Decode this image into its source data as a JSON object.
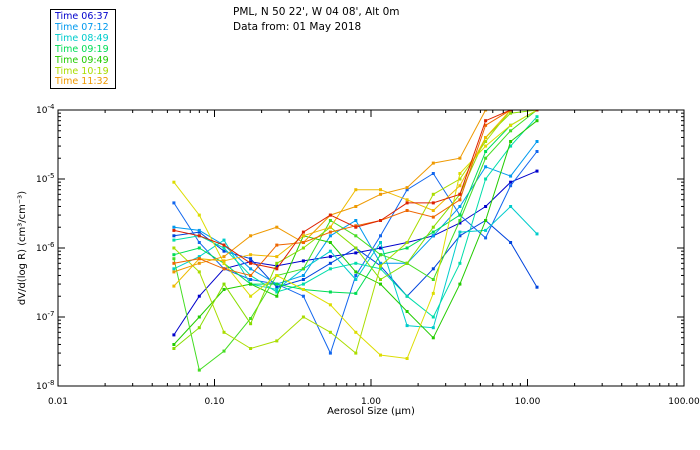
{
  "header": {
    "location": "PML, N 50 22', W 04 08', Alt 0m",
    "data_from": "Data from: 01 May 2018"
  },
  "legend": {
    "items": [
      {
        "label": "Time 06:37",
        "color": "#0000cc"
      },
      {
        "label": "Time 07:12",
        "color": "#0099ee"
      },
      {
        "label": "Time 08:49",
        "color": "#00cccc"
      },
      {
        "label": "Time 09:19",
        "color": "#00dd55"
      },
      {
        "label": "Time 09:49",
        "color": "#22cc00"
      },
      {
        "label": "Time 10:19",
        "color": "#aadd00"
      },
      {
        "label": "Time 11:32",
        "color": "#ee9900"
      }
    ]
  },
  "chart_data": {
    "type": "line",
    "xscale": "log",
    "yscale": "log",
    "xlim": [
      0.01,
      100.0
    ],
    "ylim": [
      1e-08,
      0.0001
    ],
    "xticks": [
      "0.01",
      "0.10",
      "1.00",
      "10.00",
      "100.00"
    ],
    "yticks": [
      "10^-8",
      "10^-7",
      "10^-6",
      "10^-5",
      "10^-4"
    ],
    "xlabel": "Aerosol Size (μm)",
    "ylabel": "dV/d(log R) (cm³/cm⁻³)",
    "x": [
      0.055,
      0.08,
      0.115,
      0.17,
      0.25,
      0.37,
      0.55,
      0.8,
      1.15,
      1.7,
      2.5,
      3.7,
      5.4,
      7.8,
      11.5
    ],
    "series": [
      {
        "color": "#0000cc",
        "values": [
          5.5e-08,
          2e-07,
          5e-07,
          6.3e-07,
          5.5e-07,
          6.5e-07,
          7.5e-07,
          8.5e-07,
          1e-06,
          1.2e-06,
          1.5e-06,
          2.3e-06,
          4e-06,
          9e-06,
          1.3e-05
        ]
      },
      {
        "color": "#0044dd",
        "values": [
          1.5e-06,
          1.7e-06,
          9e-07,
          7e-07,
          2.7e-07,
          3.5e-07,
          6e-07,
          1e-06,
          5.5e-07,
          2e-07,
          5e-07,
          1.5e-06,
          2.5e-06,
          1.2e-06,
          2.7e-07
        ]
      },
      {
        "color": "#1166ee",
        "values": [
          4.5e-06,
          1.2e-06,
          5e-07,
          3.5e-07,
          3e-07,
          2e-07,
          3e-08,
          4e-07,
          1.5e-06,
          7e-06,
          1.2e-05,
          3e-06,
          1.4e-06,
          8e-06,
          2.5e-05
        ]
      },
      {
        "color": "#0099ee",
        "values": [
          2e-06,
          1.8e-06,
          1.1e-06,
          5e-07,
          3e-07,
          4e-07,
          1.5e-06,
          2.5e-06,
          6e-07,
          6e-07,
          1.5e-06,
          4e-06,
          1.5e-05,
          1.1e-05,
          3.5e-05
        ]
      },
      {
        "color": "#00cccc",
        "values": [
          5e-07,
          7.5e-07,
          1.3e-06,
          3e-07,
          2.5e-07,
          5e-07,
          9e-07,
          3.5e-07,
          1.2e-06,
          7.5e-08,
          7e-08,
          1.7e-06,
          1.8e-06,
          4e-06,
          1.6e-06
        ]
      },
      {
        "color": "#00ddaa",
        "values": [
          1.3e-06,
          1.5e-06,
          1e-06,
          4e-07,
          2.3e-07,
          3e-07,
          5e-07,
          6e-07,
          5e-07,
          2e-07,
          1e-07,
          6e-07,
          1e-05,
          3e-05,
          8e-05
        ]
      },
      {
        "color": "#00dd55",
        "values": [
          8e-07,
          1e-06,
          6e-07,
          3e-07,
          3e-07,
          2.5e-07,
          2.3e-07,
          2.2e-07,
          8e-07,
          1e-06,
          1.7e-06,
          3e-06,
          2.5e-05,
          6e-05,
          0.0001
        ]
      },
      {
        "color": "#22cc00",
        "values": [
          4e-08,
          1e-07,
          2.5e-07,
          3e-07,
          2e-07,
          1.5e-06,
          1.2e-06,
          4.5e-07,
          3e-07,
          1.2e-07,
          5e-08,
          3e-07,
          2.5e-06,
          3.5e-05,
          7e-05
        ]
      },
      {
        "color": "#44dd22",
        "values": [
          7e-07,
          1.7e-08,
          3.2e-08,
          9.5e-08,
          4e-07,
          5e-07,
          2.5e-06,
          1.5e-06,
          8e-07,
          6e-07,
          3.5e-07,
          2.5e-06,
          2e-05,
          5e-05,
          0.0001
        ]
      },
      {
        "color": "#88dd00",
        "values": [
          3.5e-08,
          7e-08,
          3e-07,
          8e-08,
          6e-07,
          1e-06,
          2e-06,
          1e-06,
          3.5e-07,
          6e-07,
          2e-06,
          6e-06,
          4e-05,
          9e-05,
          0.0001
        ]
      },
      {
        "color": "#aadd00",
        "values": [
          1e-06,
          4.5e-07,
          6e-08,
          3.5e-08,
          4.5e-08,
          1e-07,
          6e-08,
          3e-08,
          5.5e-07,
          1.2e-06,
          6e-06,
          1e-05,
          3.5e-05,
          0.0001,
          0.0001
        ]
      },
      {
        "color": "#dddd00",
        "values": [
          9e-06,
          3e-06,
          6e-07,
          2e-07,
          4e-07,
          2.5e-07,
          1.5e-07,
          6e-08,
          2.8e-08,
          2.5e-08,
          2.2e-07,
          1.2e-05,
          3e-05,
          6e-05,
          0.0001
        ]
      },
      {
        "color": "#eebb00",
        "values": [
          2.8e-07,
          7e-07,
          6.5e-07,
          8e-07,
          7.5e-07,
          1.5e-06,
          2e-06,
          7e-06,
          7e-06,
          5e-06,
          3.5e-06,
          8e-06,
          4e-05,
          0.0001,
          0.0001
        ]
      },
      {
        "color": "#ee9900",
        "values": [
          4.5e-07,
          6e-07,
          7.5e-07,
          1.5e-06,
          2e-06,
          1.2e-06,
          3e-06,
          4e-06,
          6e-06,
          7.5e-06,
          1.7e-05,
          2e-05,
          0.0001,
          0.0001,
          0.0001
        ]
      },
      {
        "color": "#ee6600",
        "values": [
          6e-07,
          7e-07,
          5e-07,
          4e-07,
          1.1e-06,
          1.2e-06,
          1.7e-06,
          2.1e-06,
          2.5e-06,
          3.5e-06,
          2.8e-06,
          5e-06,
          6e-05,
          0.0001,
          0.0001
        ]
      },
      {
        "color": "#dd2200",
        "values": [
          1.8e-06,
          1.5e-06,
          1.1e-06,
          6e-07,
          5e-07,
          1.7e-06,
          3e-06,
          2e-06,
          2.5e-06,
          4.5e-06,
          4.5e-06,
          6e-06,
          7e-05,
          0.0001,
          0.0001
        ]
      }
    ]
  }
}
